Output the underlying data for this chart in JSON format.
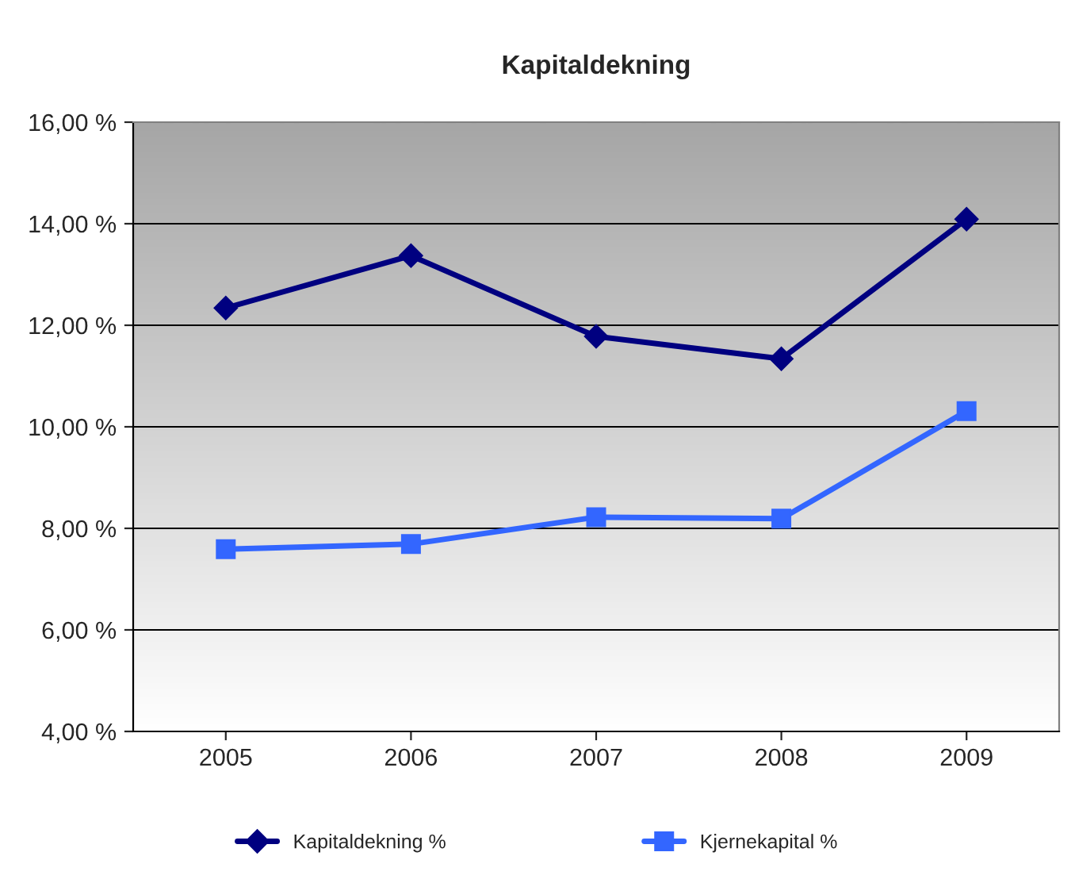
{
  "chart_data": {
    "type": "line",
    "title": "Kapitaldekning",
    "categories": [
      "2005",
      "2006",
      "2007",
      "2008",
      "2009"
    ],
    "series": [
      {
        "name": "Kapitaldekning %",
        "color": "#000080",
        "values": [
          12.34,
          13.37,
          11.78,
          11.34,
          14.09
        ],
        "marker": "diamond"
      },
      {
        "name": "Kjernekapital %",
        "color": "#3366ff",
        "values": [
          7.59,
          7.69,
          8.22,
          8.19,
          10.31
        ],
        "marker": "square"
      }
    ],
    "ylim": [
      4,
      16
    ],
    "yticks": [
      {
        "value": 4,
        "label": "4,00 %"
      },
      {
        "value": 6,
        "label": "6,00 %"
      },
      {
        "value": 8,
        "label": "8,00 %"
      },
      {
        "value": 10,
        "label": "10,00 %"
      },
      {
        "value": 12,
        "label": "12,00 %"
      },
      {
        "value": 14,
        "label": "14,00 %"
      },
      {
        "value": 16,
        "label": "16,00 %"
      }
    ],
    "grid": "y",
    "legend": "bottom",
    "line_style": "solid"
  }
}
